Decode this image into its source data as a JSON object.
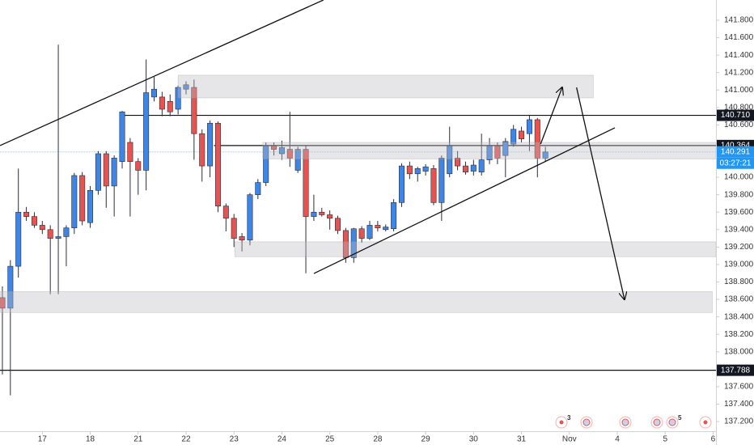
{
  "chart_data": {
    "type": "candlestick",
    "up_color": "#3d85e6",
    "down_color": "#e8524f",
    "x": [
      0,
      1,
      2,
      3,
      4,
      5,
      6,
      7,
      8,
      9,
      10,
      11,
      12,
      13,
      14,
      15,
      16,
      17,
      18,
      19,
      20,
      21,
      22,
      23,
      24,
      25,
      26,
      27,
      28,
      29,
      30,
      31,
      32,
      33,
      34,
      35,
      36,
      37,
      38,
      39,
      40,
      41,
      42,
      43,
      44,
      45,
      46,
      47,
      48,
      49,
      50,
      51,
      52,
      53,
      54,
      55,
      56,
      57,
      58,
      59,
      60,
      61,
      62,
      63,
      64,
      65,
      66,
      67,
      68
    ],
    "open": [
      138.62,
      138.5,
      138.98,
      139.6,
      139.55,
      139.45,
      139.4,
      139.3,
      139.32,
      139.42,
      140.02,
      139.48,
      139.85,
      140.27,
      139.9,
      140.18,
      140.4,
      140.18,
      140.08,
      140.92,
      140.92,
      140.87,
      140.78,
      141.01,
      141.03,
      140.5,
      140.13,
      140.62,
      139.67,
      139.53,
      139.32,
      139.28,
      139.8,
      139.94,
      140.36,
      140.27,
      140.32,
      140.08,
      140.32,
      139.55,
      139.6,
      139.57,
      139.53,
      139.39,
      139.08,
      139.41,
      139.3,
      139.45,
      139.4,
      139.41,
      139.71,
      140.13,
      140.04,
      140.07,
      140.1,
      139.71,
      140.04,
      140.22,
      140.13,
      140.07,
      140.06,
      140.2,
      140.36,
      140.25,
      140.38,
      140.53,
      140.5,
      140.66,
      140.22
    ],
    "high": [
      138.75,
      139.05,
      140.1,
      139.66,
      139.6,
      139.5,
      139.45,
      141.52,
      139.45,
      140.05,
      140.06,
      139.9,
      140.3,
      140.3,
      140.25,
      140.76,
      140.45,
      140.22,
      141.35,
      141.15,
      140.98,
      140.95,
      141.05,
      141.1,
      141.12,
      140.55,
      140.65,
      140.64,
      139.7,
      139.58,
      139.36,
      139.82,
      139.98,
      140.4,
      140.4,
      140.42,
      140.75,
      140.35,
      140.36,
      139.8,
      139.65,
      139.62,
      139.56,
      139.42,
      139.42,
      139.44,
      139.5,
      139.5,
      139.46,
      139.75,
      140.16,
      140.18,
      140.12,
      140.15,
      140.14,
      140.25,
      140.58,
      140.3,
      140.18,
      140.2,
      140.5,
      140.45,
      140.4,
      140.45,
      140.6,
      140.58,
      140.71,
      140.68,
      140.35
    ],
    "low": [
      137.74,
      137.5,
      138.85,
      139.5,
      139.42,
      139.35,
      138.66,
      138.66,
      138.98,
      139.35,
      139.45,
      139.42,
      139.8,
      139.65,
      139.55,
      140.1,
      139.55,
      139.8,
      139.85,
      140.87,
      140.7,
      140.7,
      140.72,
      140.95,
      140.2,
      139.95,
      140.0,
      139.6,
      139.38,
      139.2,
      139.15,
      139.22,
      139.75,
      139.9,
      140.25,
      140.2,
      140.12,
      140.05,
      138.9,
      139.5,
      139.55,
      139.4,
      139.35,
      139.02,
      139.02,
      139.25,
      139.28,
      139.38,
      139.38,
      139.38,
      139.66,
      139.98,
      139.95,
      140.02,
      139.68,
      139.5,
      140.0,
      140.08,
      140.03,
      140.02,
      140.02,
      140.15,
      140.15,
      140.0,
      140.35,
      140.4,
      140.3,
      140.0,
      140.18
    ],
    "close": [
      138.5,
      138.98,
      139.6,
      139.55,
      139.45,
      139.4,
      139.3,
      139.32,
      139.42,
      140.02,
      139.5,
      139.85,
      140.27,
      139.9,
      140.22,
      140.75,
      140.18,
      140.08,
      140.97,
      141.01,
      140.78,
      140.75,
      141.03,
      141.06,
      140.5,
      140.13,
      140.62,
      139.67,
      139.53,
      139.3,
      139.28,
      139.8,
      139.94,
      140.36,
      140.32,
      140.34,
      140.22,
      140.32,
      139.55,
      139.6,
      139.57,
      139.53,
      139.39,
      139.08,
      139.41,
      139.3,
      139.45,
      139.42,
      139.43,
      139.71,
      140.13,
      140.04,
      140.1,
      140.12,
      139.71,
      140.22,
      140.36,
      140.13,
      140.06,
      140.14,
      140.2,
      140.36,
      140.22,
      140.41,
      140.55,
      140.44,
      140.66,
      140.22,
      140.29
    ],
    "xlim": [
      -0.3,
      89.36
    ],
    "ylim": [
      137.089,
      142.032
    ],
    "xticks": [
      {
        "value": 5,
        "label": "17"
      },
      {
        "value": 11,
        "label": "18"
      },
      {
        "value": 17,
        "label": "21"
      },
      {
        "value": 23,
        "label": "22"
      },
      {
        "value": 29,
        "label": "23"
      },
      {
        "value": 35,
        "label": "24"
      },
      {
        "value": 41,
        "label": "25"
      },
      {
        "value": 47,
        "label": "28"
      },
      {
        "value": 53,
        "label": "29"
      },
      {
        "value": 59,
        "label": "30"
      },
      {
        "value": 65,
        "label": "31"
      },
      {
        "value": 71,
        "label": "Nov"
      },
      {
        "value": 77,
        "label": "4"
      },
      {
        "value": 83,
        "label": "5"
      },
      {
        "value": 89,
        "label": "6"
      }
    ],
    "yticks": [
      {
        "value": 141.8,
        "label": "141.800"
      },
      {
        "value": 141.6,
        "label": "141.600"
      },
      {
        "value": 141.4,
        "label": "141.400"
      },
      {
        "value": 141.2,
        "label": "141.200"
      },
      {
        "value": 141.0,
        "label": "141.000"
      },
      {
        "value": 140.8,
        "label": "140.800"
      },
      {
        "value": 140.6,
        "label": "140.600"
      },
      {
        "value": 140.0,
        "label": "140.000"
      },
      {
        "value": 139.8,
        "label": "139.800"
      },
      {
        "value": 139.6,
        "label": "139.600"
      },
      {
        "value": 139.4,
        "label": "139.400"
      },
      {
        "value": 139.2,
        "label": "139.200"
      },
      {
        "value": 139.0,
        "label": "139.000"
      },
      {
        "value": 138.8,
        "label": "138.800"
      },
      {
        "value": 138.6,
        "label": "138.600"
      },
      {
        "value": 138.4,
        "label": "138.400"
      },
      {
        "value": 138.2,
        "label": "138.200"
      },
      {
        "value": 138.0,
        "label": "138.000"
      },
      {
        "value": 137.6,
        "label": "137.600"
      },
      {
        "value": 137.4,
        "label": "137.400"
      },
      {
        "value": 137.2,
        "label": "137.200"
      }
    ],
    "price_lines": [
      {
        "value": 140.71,
        "label": "140.710",
        "from": 15.0
      },
      {
        "value": 140.364,
        "label": "140.364",
        "from": 26.5
      },
      {
        "value": 137.788,
        "label": "137.788",
        "from": -0.3
      }
    ],
    "current_price": {
      "value": 140.291,
      "label": "140.291",
      "countdown": "03:27:21",
      "color": "#2196f3"
    },
    "zones": [
      {
        "x": [
          22,
          74
        ],
        "y": [
          140.91,
          141.17
        ]
      },
      {
        "x": [
          29.1,
          89.36
        ],
        "y": [
          139.09,
          139.26
        ]
      },
      {
        "x": [
          -0.3,
          88.9
        ],
        "y": [
          138.45,
          138.69
        ]
      },
      {
        "x": [
          32.6,
          89.36
        ],
        "y": [
          140.21,
          140.4
        ]
      }
    ],
    "trendlines": [
      {
        "x": [
          -0.3,
          40.2
        ],
        "y": [
          140.363,
          142.032
        ],
        "arrow": false
      },
      {
        "x": [
          39.0,
          76.7
        ],
        "y": [
          138.897,
          140.567
        ],
        "arrow": false
      },
      {
        "x": [
          67.4,
          70.1
        ],
        "y": [
          140.381,
          141.03
        ],
        "arrow": true
      },
      {
        "x": [
          71.9,
          77.9
        ],
        "y": [
          141.03,
          138.6
        ],
        "arrow": true
      }
    ],
    "badges": [
      "3",
      "5"
    ]
  }
}
